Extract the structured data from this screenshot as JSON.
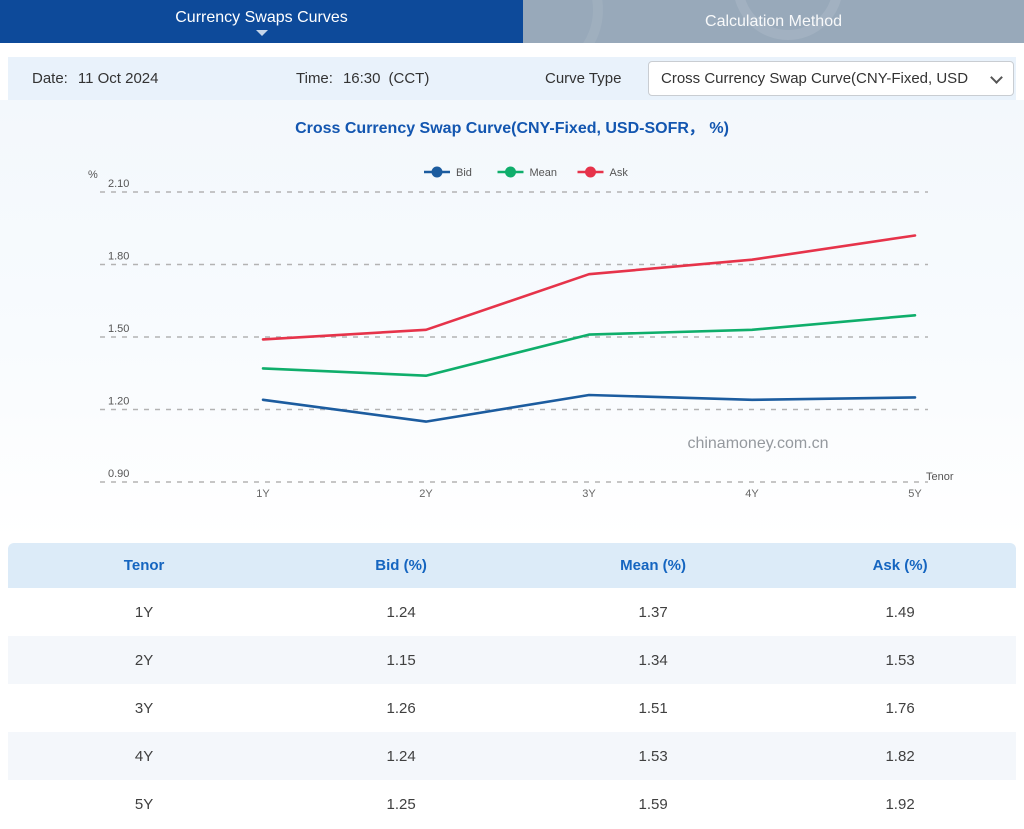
{
  "tabs": [
    {
      "label": "Currency Swaps Curves",
      "active": true
    },
    {
      "label": "Calculation Method",
      "active": false
    }
  ],
  "info_bar": {
    "date_label": "Date:",
    "date_value": "11 Oct 2024",
    "time_label": "Time:",
    "time_value": "16:30",
    "time_zone": "(CCT)",
    "curve_type_label": "Curve Type",
    "curve_type_value": "Cross Currency Swap Curve(CNY-Fixed, USD"
  },
  "chart": {
    "title": "Cross Currency Swap Curve(CNY-Fixed, USD-SOFR， %)",
    "watermark": "chinamoney.com.cn"
  },
  "chart_data": {
    "type": "line",
    "title": "Cross Currency Swap Curve(CNY-Fixed, USD-SOFR， %)",
    "x": [
      "1Y",
      "2Y",
      "3Y",
      "4Y",
      "5Y"
    ],
    "series": [
      {
        "name": "Bid",
        "color": "#1c5c9f",
        "values": [
          1.24,
          1.15,
          1.26,
          1.24,
          1.25
        ]
      },
      {
        "name": "Mean",
        "color": "#0fae6b",
        "values": [
          1.37,
          1.34,
          1.51,
          1.53,
          1.59
        ]
      },
      {
        "name": "Ask",
        "color": "#e6334a",
        "values": [
          1.49,
          1.53,
          1.76,
          1.82,
          1.92
        ]
      }
    ],
    "xlabel": "Tenor",
    "ylabel": "%",
    "ylim": [
      0.9,
      2.1
    ],
    "yticks": [
      2.1,
      1.8,
      1.5,
      1.2,
      0.9
    ],
    "ytick_labels": [
      "2.10",
      "1.80",
      "1.50",
      "1.20",
      "0.90"
    ],
    "grid": "dashed-horizontal",
    "legend_position": "top-center",
    "watermark": "chinamoney.com.cn"
  },
  "table": {
    "headers": [
      "Tenor",
      "Bid (%)",
      "Mean (%)",
      "Ask (%)"
    ],
    "rows": [
      [
        "1Y",
        "1.24",
        "1.37",
        "1.49"
      ],
      [
        "2Y",
        "1.15",
        "1.34",
        "1.53"
      ],
      [
        "3Y",
        "1.26",
        "1.51",
        "1.76"
      ],
      [
        "4Y",
        "1.24",
        "1.53",
        "1.82"
      ],
      [
        "5Y",
        "1.25",
        "1.59",
        "1.92"
      ]
    ]
  },
  "colors": {
    "active_tab": "#0d4a9a",
    "inactive_tab": "#98a9ba",
    "info_bar_bg": "#e9f2fb",
    "title_blue": "#1356b0",
    "table_header_text": "#1565c0",
    "gridline": "#b3b3b3",
    "bid": "#1c5c9f",
    "mean": "#0fae6b",
    "ask": "#e6334a"
  }
}
